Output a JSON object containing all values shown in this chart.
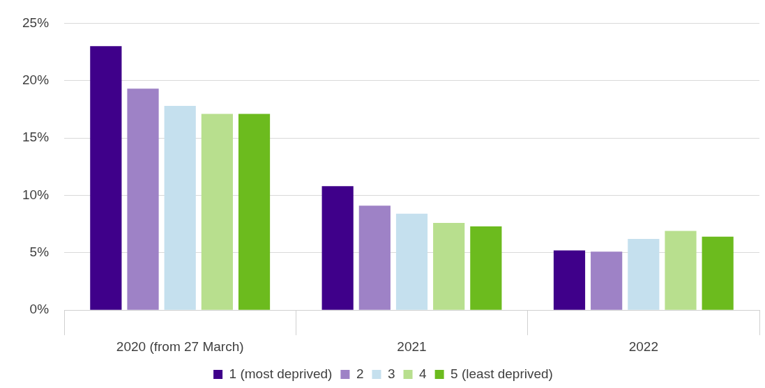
{
  "chart_data": {
    "type": "bar",
    "categories": [
      "2020 (from 27 March)",
      "2021",
      "2022"
    ],
    "series": [
      {
        "name": "1 (most deprived)",
        "color": "#3f008a",
        "values": [
          23.0,
          10.8,
          5.2
        ]
      },
      {
        "name": "2",
        "color": "#9e82c6",
        "values": [
          19.3,
          9.1,
          5.1
        ]
      },
      {
        "name": "3",
        "color": "#c5e0ee",
        "values": [
          17.8,
          8.4,
          6.2
        ]
      },
      {
        "name": "4",
        "color": "#b8df8e",
        "values": [
          17.1,
          7.6,
          6.9
        ]
      },
      {
        "name": "5 (least deprived)",
        "color": "#6cbb1e",
        "values": [
          17.1,
          7.3,
          6.4
        ]
      }
    ],
    "ylim": [
      0,
      25
    ],
    "yticks": [
      {
        "value": 0,
        "label": "0%"
      },
      {
        "value": 5,
        "label": "5%"
      },
      {
        "value": 10,
        "label": "10%"
      },
      {
        "value": 15,
        "label": "15%"
      },
      {
        "value": 20,
        "label": "20%"
      },
      {
        "value": 25,
        "label": "25%"
      }
    ],
    "grid": "y",
    "legend": "bottom"
  }
}
